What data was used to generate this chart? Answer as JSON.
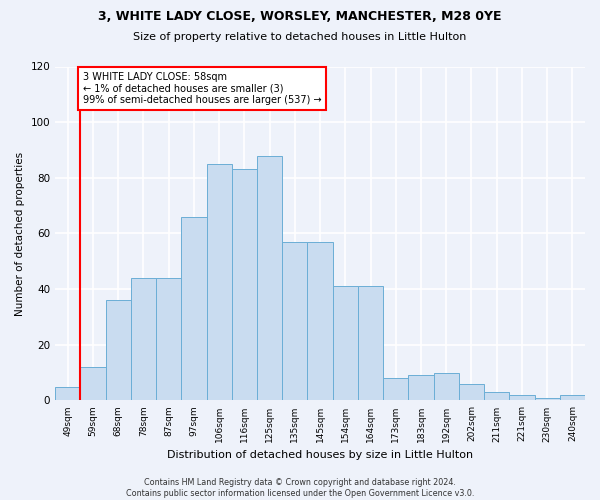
{
  "title1": "3, WHITE LADY CLOSE, WORSLEY, MANCHESTER, M28 0YE",
  "title2": "Size of property relative to detached houses in Little Hulton",
  "xlabel": "Distribution of detached houses by size in Little Hulton",
  "ylabel": "Number of detached properties",
  "footer": "Contains HM Land Registry data © Crown copyright and database right 2024.\nContains public sector information licensed under the Open Government Licence v3.0.",
  "categories": [
    "49sqm",
    "59sqm",
    "68sqm",
    "78sqm",
    "87sqm",
    "97sqm",
    "106sqm",
    "116sqm",
    "125sqm",
    "135sqm",
    "145sqm",
    "154sqm",
    "164sqm",
    "173sqm",
    "183sqm",
    "192sqm",
    "202sqm",
    "211sqm",
    "221sqm",
    "230sqm",
    "240sqm"
  ],
  "bar_values": [
    5,
    12,
    36,
    44,
    44,
    66,
    85,
    83,
    88,
    57,
    57,
    41,
    41,
    8,
    9,
    10,
    6,
    3,
    2,
    1,
    2
  ],
  "bar_color": "#c9dcf0",
  "bar_edge_color": "#6baed6",
  "annotation_text": "3 WHITE LADY CLOSE: 58sqm\n← 1% of detached houses are smaller (3)\n99% of semi-detached houses are larger (537) →",
  "vline_x": 0.5,
  "annotation_box_facecolor": "white",
  "annotation_box_edgecolor": "red",
  "ylim": [
    0,
    120
  ],
  "yticks": [
    0,
    20,
    40,
    60,
    80,
    100,
    120
  ],
  "background_color": "#eef2fa",
  "grid_color": "white"
}
